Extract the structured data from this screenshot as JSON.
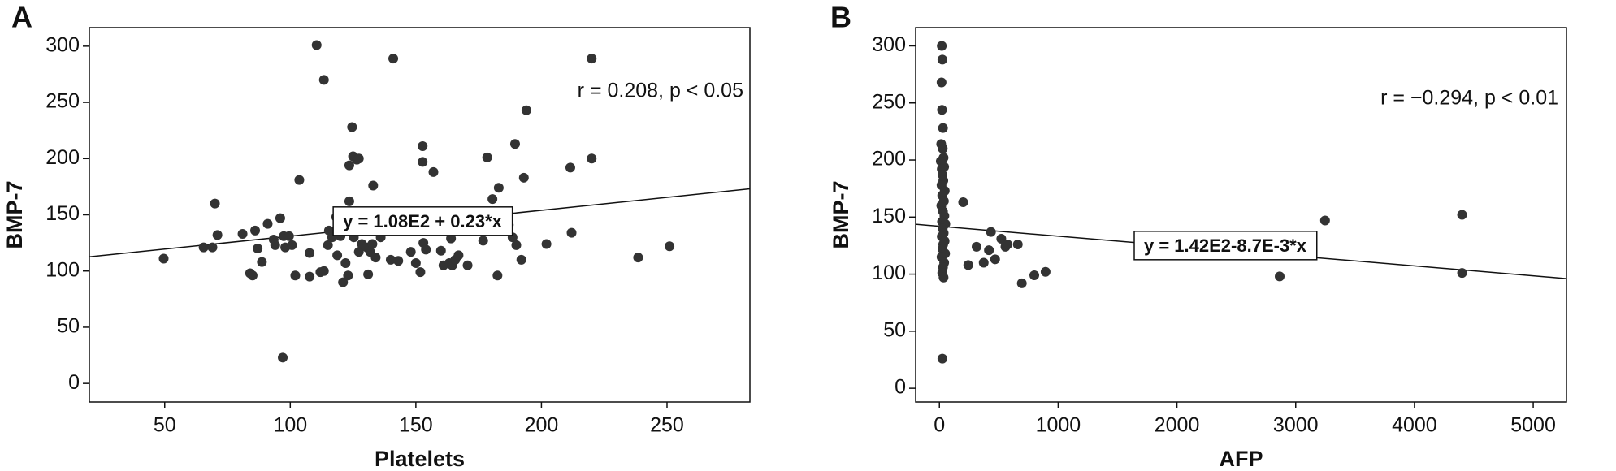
{
  "chart_data": [
    {
      "type": "scatter",
      "panel_label": "A",
      "x_label": "Platelets",
      "y_label": "BMP-7",
      "annotation": "r = 0.208, p < 0.05",
      "equation": "y = 1.08E2 + 0.23*x",
      "color": "#333333",
      "xlim": [
        20,
        283
      ],
      "ylim": [
        -16.5,
        316.5
      ],
      "xticks": [
        50,
        100,
        150,
        200,
        250
      ],
      "yticks": [
        0,
        50,
        100,
        150,
        200,
        250,
        300
      ],
      "fit_line": {
        "x": [
          20,
          283
        ],
        "y": [
          112.6,
          173.1
        ]
      },
      "x": [
        49.6,
        65.5,
        69,
        70,
        71,
        81,
        84,
        85,
        86,
        87,
        88.7,
        91,
        93.4,
        94,
        96,
        97,
        97.4,
        98,
        99.5,
        100.7,
        102,
        103.6,
        107.7,
        107.7,
        110.5,
        112,
        113.4,
        113.4,
        115,
        115.4,
        116.7,
        118.3,
        118.7,
        120,
        121,
        122,
        123,
        123.5,
        123.5,
        124.6,
        125,
        125.3,
        126.5,
        127.3,
        127.3,
        128.5,
        130.5,
        131,
        131.8,
        132,
        132.7,
        133,
        134,
        136,
        140,
        141,
        143,
        148,
        150,
        151.8,
        152.7,
        152.7,
        153,
        154,
        157,
        160,
        161,
        163.3,
        164,
        164.5,
        165.7,
        167,
        170.6,
        176.8,
        178.4,
        180.5,
        182.5,
        183,
        184,
        187,
        188.5,
        189.5,
        190,
        192,
        193,
        194,
        202,
        211.5,
        212,
        220,
        220,
        238.5,
        251
      ],
      "y": [
        111,
        121,
        121,
        160,
        132,
        133,
        98,
        96,
        136,
        120,
        108,
        142,
        128,
        123,
        147,
        23,
        131,
        121,
        131,
        123,
        96,
        181,
        116,
        95,
        301,
        99,
        100,
        270,
        123,
        136,
        130,
        148,
        114,
        131,
        90,
        107,
        96,
        162,
        194,
        228,
        202,
        130,
        199,
        200,
        117,
        124,
        121,
        97,
        117,
        141,
        124,
        176,
        112,
        130,
        110,
        289,
        109,
        117,
        107,
        99,
        211,
        197,
        125,
        119,
        188,
        118,
        105,
        107,
        129,
        105,
        110,
        114,
        105,
        127,
        201,
        164,
        96,
        174,
        146,
        141,
        130,
        213,
        123,
        110,
        183,
        243,
        124,
        192,
        134,
        289,
        200,
        112,
        122
      ]
    },
    {
      "type": "scatter",
      "panel_label": "B",
      "x_label": "AFP",
      "y_label": "BMP-7",
      "annotation": "r = −0.294, p < 0.01",
      "equation": "y = 1.42E2-8.7E-3*x",
      "color": "#333333",
      "xlim": [
        -200,
        5280
      ],
      "ylim": [
        -12,
        316
      ],
      "xticks": [
        0,
        1000,
        2000,
        3000,
        4000,
        5000
      ],
      "yticks": [
        0,
        50,
        100,
        150,
        200,
        250,
        300
      ],
      "fit_line": {
        "x": [
          -200,
          5280
        ],
        "y": [
          143.7,
          96.1
        ]
      },
      "x": [
        20,
        25,
        18,
        22,
        30,
        15,
        28,
        35,
        12,
        40,
        20,
        26,
        33,
        18,
        45,
        24,
        38,
        16,
        30,
        42,
        22,
        50,
        28,
        36,
        20,
        44,
        32,
        26,
        48,
        18,
        40,
        30,
        24,
        35,
        25,
        200,
        243,
        313,
        373,
        417,
        434,
        469,
        521,
        556,
        573,
        660,
        694,
        799,
        894,
        2865,
        3247,
        4401,
        4401
      ],
      "y": [
        300,
        288,
        268,
        244,
        228,
        214,
        210,
        202,
        199,
        194,
        192,
        187,
        182,
        178,
        173,
        169,
        164,
        160,
        155,
        151,
        146,
        144,
        140,
        136,
        133,
        129,
        126,
        122,
        118,
        115,
        110,
        106,
        101,
        97,
        26,
        163,
        108,
        124,
        110,
        121,
        137,
        113,
        131,
        124,
        126,
        126,
        92,
        99,
        102,
        98,
        147,
        152,
        101
      ]
    }
  ]
}
